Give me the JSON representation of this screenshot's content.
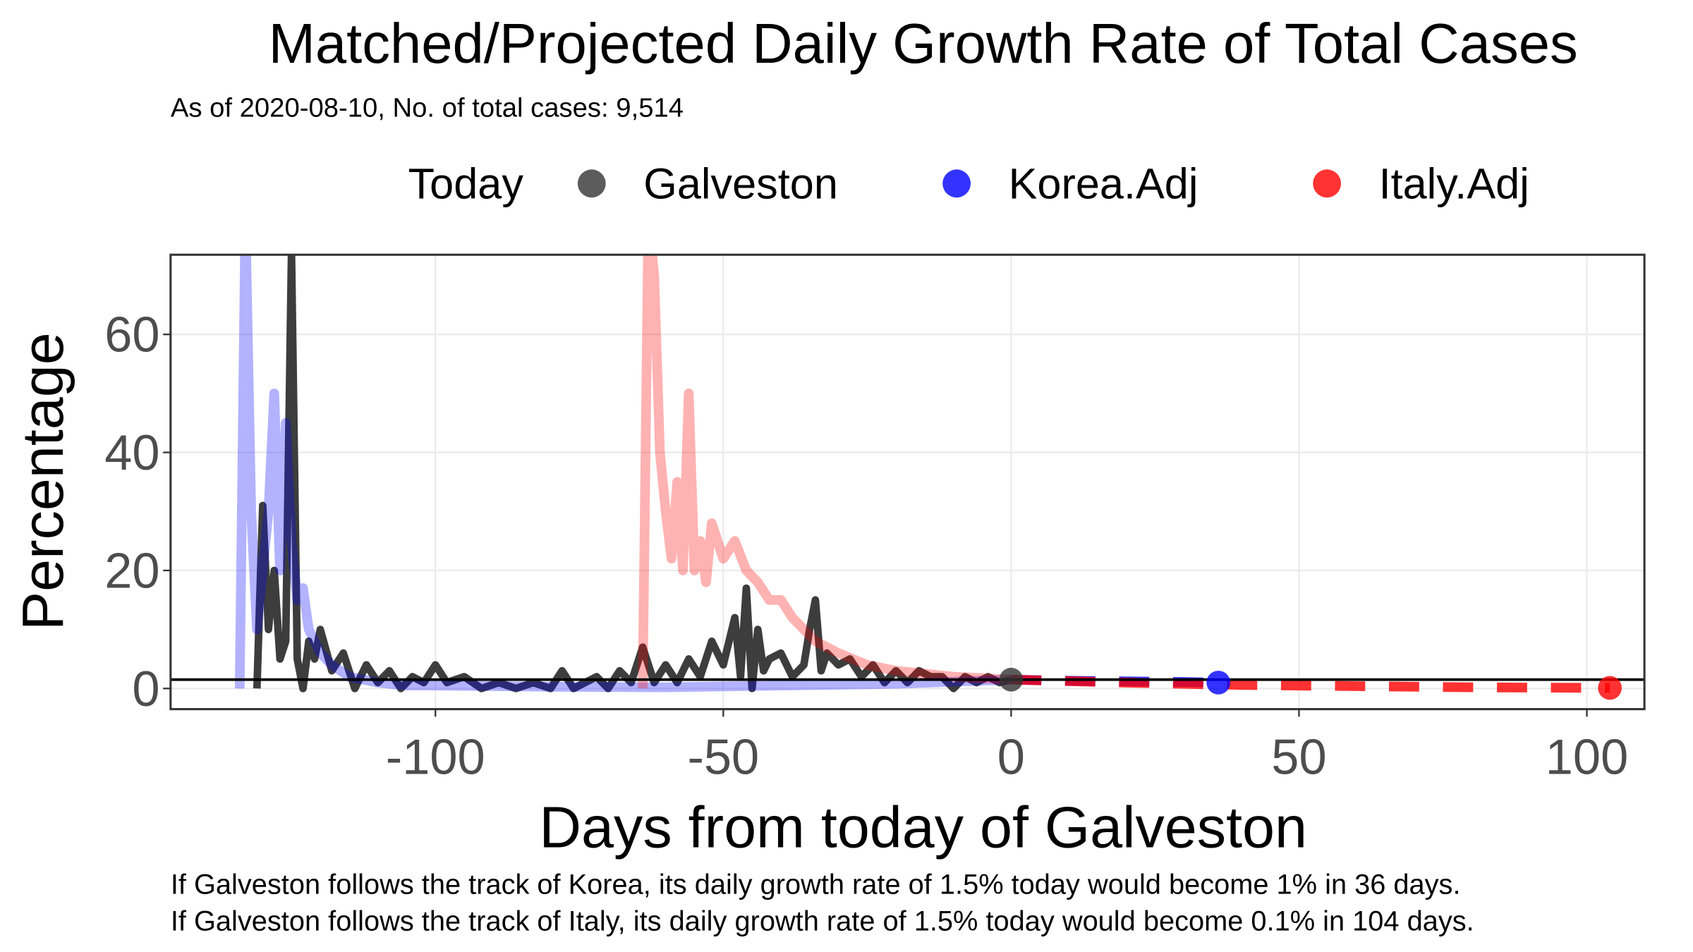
{
  "chart_data": {
    "type": "line",
    "title": "Matched/Projected Daily Growth Rate of Total Cases",
    "subtitle": "As of 2020-08-10, No. of total cases: 9,514",
    "legend_title": "Today",
    "x_label": "Days from today of Galveston",
    "y_label": "Percentage",
    "notes": [
      "If Galveston follows the track of Korea, its daily growth rate of 1.5% today would become 1% in 36 days.",
      "If Galveston follows the track of Italy, its daily growth rate of 1.5% today would become 0.1% in 104 days."
    ],
    "xlim": [
      -146,
      110
    ],
    "ylim": [
      -3.5,
      73.5
    ],
    "xticks": [
      -100,
      -50,
      0,
      50,
      100
    ],
    "yticks": [
      0,
      20,
      40,
      60
    ],
    "grid": true,
    "today_x": 0,
    "hline": 1.5,
    "series": [
      {
        "name": "Galveston",
        "color": "#333333",
        "x": [
          -131,
          -130,
          -129,
          -128,
          -127,
          -126,
          -125,
          -124,
          -123,
          -122,
          -121,
          -120,
          -118,
          -116,
          -114,
          -112,
          -110,
          -108,
          -106,
          -104,
          -102,
          -100,
          -98,
          -95,
          -92,
          -89,
          -86,
          -83,
          -80,
          -78,
          -76,
          -74,
          -72,
          -70,
          -68,
          -66,
          -64,
          -62,
          -60,
          -58,
          -56,
          -54,
          -52,
          -50,
          -48,
          -47,
          -46,
          -45,
          -44,
          -43,
          -42,
          -40,
          -38,
          -36,
          -35,
          -34,
          -33,
          -32,
          -30,
          -28,
          -26,
          -24,
          -22,
          -20,
          -18,
          -16,
          -14,
          -12,
          -10,
          -8,
          -6,
          -4,
          -2,
          0
        ],
        "values": [
          0,
          31,
          10,
          20,
          5,
          8,
          74,
          5,
          0,
          8,
          5,
          10,
          3,
          6,
          0,
          4,
          1,
          3,
          0,
          2,
          1,
          4,
          1,
          2,
          0,
          1,
          0,
          1,
          0,
          3,
          0,
          1,
          2,
          0,
          3,
          1,
          7,
          1,
          4,
          1,
          5,
          2,
          8,
          4,
          12,
          2,
          17,
          0,
          10,
          3,
          5,
          6,
          2,
          4,
          10,
          15,
          3,
          6,
          4,
          5,
          2,
          4,
          1,
          3,
          1,
          3,
          2,
          2,
          0,
          2,
          1,
          2,
          1,
          1.5
        ]
      },
      {
        "name": "Korea.Adj",
        "color": "#0000ff",
        "x": [
          -134,
          -133,
          -132,
          -131,
          -130,
          -129,
          -128,
          -127,
          -126,
          -125,
          -124,
          -123,
          -122,
          -121,
          -120,
          -118,
          -115,
          -110,
          -105,
          -100,
          -80,
          -60,
          -40,
          -20,
          0,
          10,
          20,
          30,
          36
        ],
        "values": [
          0,
          80,
          30,
          10,
          20,
          30,
          50,
          20,
          45,
          25,
          15,
          17,
          10,
          8,
          6,
          4,
          2,
          1,
          0.5,
          0.5,
          0.3,
          0.2,
          0.5,
          0.8,
          1.5,
          1.3,
          1.2,
          1.1,
          1
        ]
      },
      {
        "name": "Italy.Adj",
        "color": "#ff0000",
        "x": [
          -64,
          -63,
          -62,
          -61,
          -60,
          -59,
          -58,
          -57,
          -56,
          -55,
          -54,
          -53,
          -52,
          -50,
          -48,
          -46,
          -44,
          -42,
          -40,
          -38,
          -36,
          -34,
          -30,
          -25,
          -20,
          -10,
          0,
          20,
          40,
          60,
          80,
          104
        ],
        "values": [
          0,
          80,
          70,
          40,
          30,
          22,
          35,
          20,
          50,
          20,
          25,
          18,
          28,
          22,
          25,
          20,
          18,
          15,
          15,
          12,
          10,
          8,
          6,
          4,
          3,
          2,
          1.5,
          1,
          0.6,
          0.4,
          0.2,
          0.1
        ]
      }
    ]
  }
}
